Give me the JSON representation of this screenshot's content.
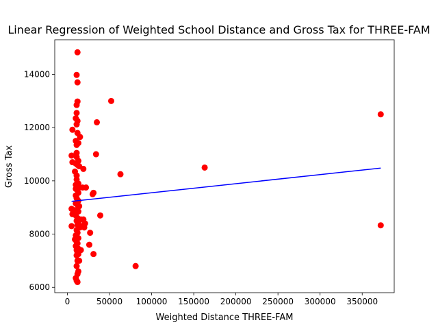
{
  "chart_data": {
    "type": "scatter",
    "title": "Linear Regression of Weighted School Distance and Gross Tax for THREE-FAM",
    "xlabel": "Weighted Distance THREE-FAM",
    "ylabel": "Gross Tax",
    "xlim": [
      -15000,
      388000
    ],
    "ylim": [
      5800,
      15300
    ],
    "xticks": [
      0,
      50000,
      100000,
      150000,
      200000,
      250000,
      300000,
      350000
    ],
    "xtick_labels": [
      "0",
      "50000",
      "100000",
      "150000",
      "200000",
      "250000",
      "300000",
      "350000"
    ],
    "yticks": [
      6000,
      8000,
      10000,
      12000,
      14000
    ],
    "ytick_labels": [
      "6000",
      "8000",
      "10000",
      "12000",
      "14000"
    ],
    "grid": false,
    "colors": {
      "points": "#ff0000",
      "regression": "#0000ff"
    },
    "series": [
      {
        "kind": "scatter",
        "points": [
          [
            12000,
            14830
          ],
          [
            11000,
            13980
          ],
          [
            12000,
            13700
          ],
          [
            12000,
            12980
          ],
          [
            11000,
            12850
          ],
          [
            11000,
            12550
          ],
          [
            10000,
            12350
          ],
          [
            12000,
            12250
          ],
          [
            11000,
            12120
          ],
          [
            6000,
            11920
          ],
          [
            12000,
            11800
          ],
          [
            15000,
            11650
          ],
          [
            10000,
            11500
          ],
          [
            13000,
            11420
          ],
          [
            11000,
            11350
          ],
          [
            11000,
            11050
          ],
          [
            5000,
            10950
          ],
          [
            11000,
            10900
          ],
          [
            13000,
            10750
          ],
          [
            6000,
            10700
          ],
          [
            10000,
            10650
          ],
          [
            12000,
            10600
          ],
          [
            14000,
            10550
          ],
          [
            9000,
            10350
          ],
          [
            11000,
            10200
          ],
          [
            11000,
            10050
          ],
          [
            13000,
            9900
          ],
          [
            10000,
            9850
          ],
          [
            12000,
            9800
          ],
          [
            10000,
            9700
          ],
          [
            12000,
            9650
          ],
          [
            13000,
            9550
          ],
          [
            10000,
            9450
          ],
          [
            11000,
            9350
          ],
          [
            13000,
            9250
          ],
          [
            10000,
            9150
          ],
          [
            12000,
            9100
          ],
          [
            14000,
            9050
          ],
          [
            5000,
            8950
          ],
          [
            9000,
            8900
          ],
          [
            13000,
            8850
          ],
          [
            6000,
            8750
          ],
          [
            10000,
            8700
          ],
          [
            12000,
            8600
          ],
          [
            14000,
            8550
          ],
          [
            11000,
            8500
          ],
          [
            13000,
            8450
          ],
          [
            12000,
            8350
          ],
          [
            5000,
            8300
          ],
          [
            15000,
            8250
          ],
          [
            11000,
            8150
          ],
          [
            12000,
            8050
          ],
          [
            10000,
            7950
          ],
          [
            13000,
            7850
          ],
          [
            9000,
            7800
          ],
          [
            11000,
            7700
          ],
          [
            12000,
            7650
          ],
          [
            10000,
            7550
          ],
          [
            13000,
            7450
          ],
          [
            11000,
            7400
          ],
          [
            12000,
            7300
          ],
          [
            13000,
            7250
          ],
          [
            11000,
            7200
          ],
          [
            14000,
            7000
          ],
          [
            12000,
            7000
          ],
          [
            11000,
            6800
          ],
          [
            13000,
            6600
          ],
          [
            12000,
            6500
          ],
          [
            10000,
            6350
          ],
          [
            11000,
            6250
          ],
          [
            12000,
            6200
          ],
          [
            19000,
            10450
          ],
          [
            18000,
            9750
          ],
          [
            22000,
            9750
          ],
          [
            16000,
            8550
          ],
          [
            19000,
            8550
          ],
          [
            21000,
            8400
          ],
          [
            17000,
            8300
          ],
          [
            20000,
            8250
          ],
          [
            16000,
            7400
          ],
          [
            27000,
            8050
          ],
          [
            26000,
            7600
          ],
          [
            30000,
            9500
          ],
          [
            31000,
            9550
          ],
          [
            31000,
            7250
          ],
          [
            35000,
            12200
          ],
          [
            34000,
            11000
          ],
          [
            39000,
            8700
          ],
          [
            52000,
            13000
          ],
          [
            63000,
            10250
          ],
          [
            81000,
            6800
          ],
          [
            163000,
            10500
          ],
          [
            372000,
            12500
          ],
          [
            372000,
            8330
          ]
        ]
      },
      {
        "kind": "line",
        "points": [
          [
            5000,
            9230
          ],
          [
            372000,
            10480
          ]
        ]
      }
    ]
  }
}
